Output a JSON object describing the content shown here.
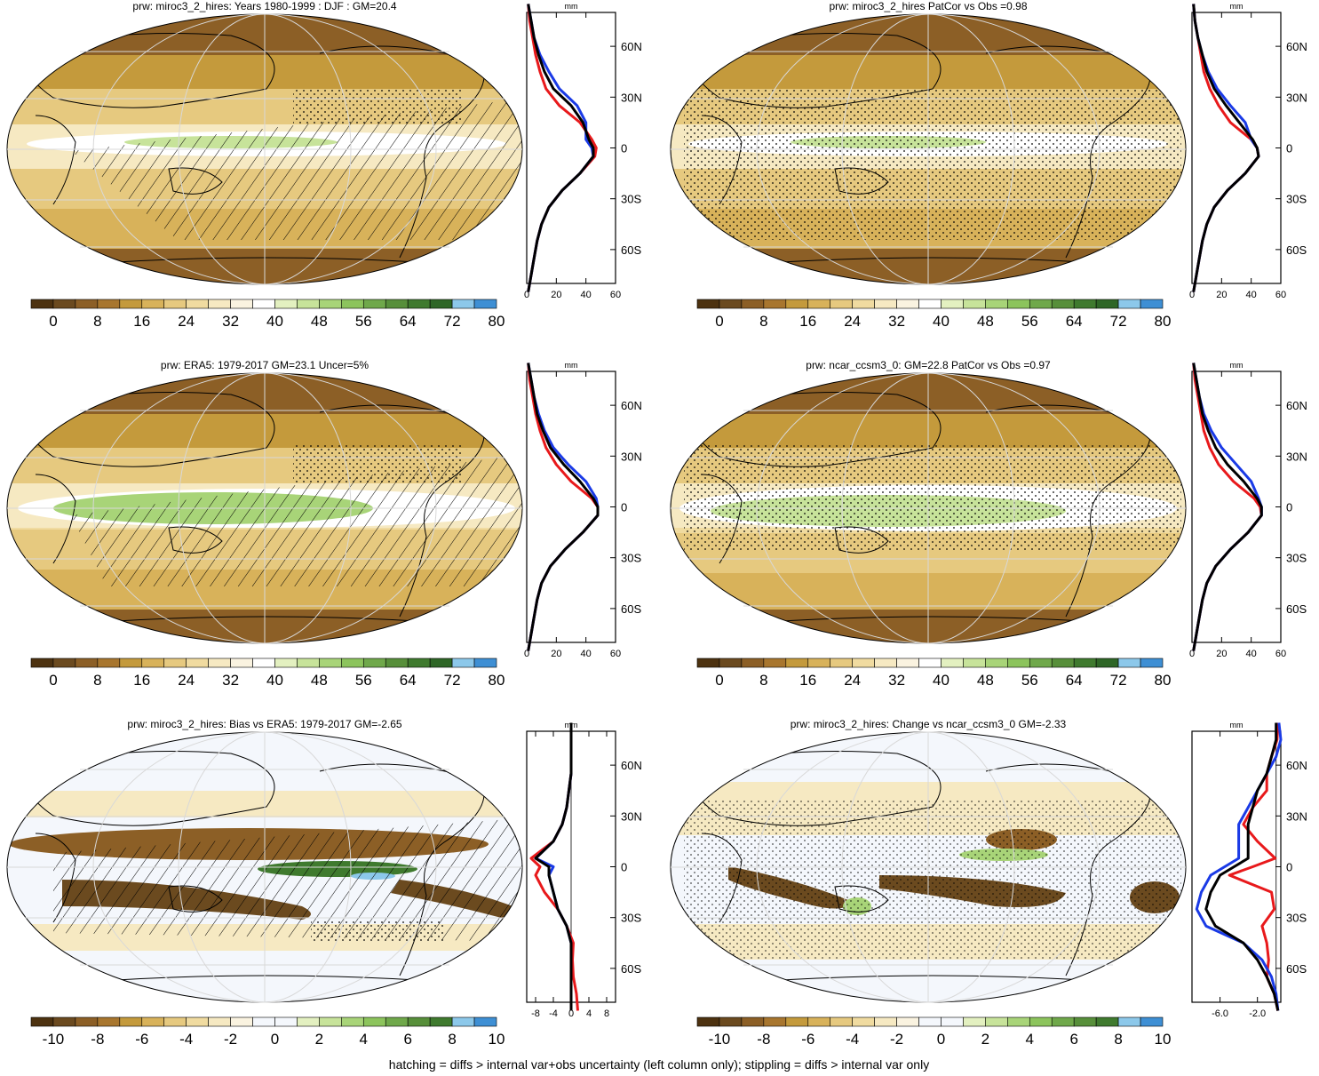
{
  "footer": "hatching = diffs > internal var+obs uncertainty (left column only); stippling = diffs > internal var only",
  "colors": {
    "precip_scale": [
      "#4d3210",
      "#6b4a1f",
      "#8c5f26",
      "#a8762e",
      "#c49a3c",
      "#d8b25a",
      "#e6c97f",
      "#f0dba0",
      "#f6e9c2",
      "#faf3e0",
      "#ffffff",
      "#e3f0c0",
      "#c7e39a",
      "#a8d478",
      "#8cc45c",
      "#6fa84a",
      "#578f3a",
      "#3f7a2e",
      "#2e6626",
      "#8cc8ea",
      "#3e8fd4"
    ],
    "diff_scale": [
      "#4d3210",
      "#6b4a1f",
      "#8c5f26",
      "#a8762e",
      "#c49a3c",
      "#d8b25a",
      "#e6c97f",
      "#f0dba0",
      "#f6e9c2",
      "#faf3e0",
      "#f4f7fc",
      "#f4f7fc",
      "#e3f0c0",
      "#c7e39a",
      "#a8d478",
      "#8cc45c",
      "#6fa84a",
      "#578f3a",
      "#3f7a2e",
      "#8cc8ea",
      "#3e8fd4"
    ],
    "model_line": "#e8191b",
    "obs_line": "#1a3ae6",
    "mean_line": "#000000"
  },
  "chart_data": [
    {
      "type": "map",
      "title": "prw: miroc3_2_hires: Years 1980-1999 : DJF : GM=20.4",
      "colorbar_labels": [
        "0",
        "8",
        "16",
        "24",
        "32",
        "40",
        "48",
        "56",
        "64",
        "72",
        "80"
      ],
      "overlay": "hatching"
    },
    {
      "type": "map",
      "title": "prw: miroc3_2_hires PatCor vs Obs =0.98",
      "colorbar_labels": [
        "0",
        "8",
        "16",
        "24",
        "32",
        "40",
        "48",
        "56",
        "64",
        "72",
        "80"
      ],
      "overlay": "stippling"
    },
    {
      "type": "map",
      "title": "prw: ERA5: 1979-2017 GM=23.1 Uncer=5%",
      "colorbar_labels": [
        "0",
        "8",
        "16",
        "24",
        "32",
        "40",
        "48",
        "56",
        "64",
        "72",
        "80"
      ],
      "overlay": "hatching"
    },
    {
      "type": "map",
      "title": "prw: ncar_ccsm3_0: GM=22.8 PatCor vs Obs =0.97",
      "colorbar_labels": [
        "0",
        "8",
        "16",
        "24",
        "32",
        "40",
        "48",
        "56",
        "64",
        "72",
        "80"
      ],
      "overlay": "stippling"
    },
    {
      "type": "map",
      "title": "prw: miroc3_2_hires: Bias vs ERA5: 1979-2017 GM=-2.65",
      "colorbar_labels": [
        "-10",
        "-8",
        "-6",
        "-4",
        "-2",
        "0",
        "2",
        "4",
        "6",
        "8",
        "10"
      ],
      "overlay": "hatching"
    },
    {
      "type": "map",
      "title": "prw: miroc3_2_hires: Change vs ncar_ccsm3_0 GM=-2.33",
      "colorbar_labels": [
        "-10",
        "-8",
        "-6",
        "-4",
        "-2",
        "0",
        "2",
        "4",
        "6",
        "8",
        "10"
      ],
      "overlay": "stippling"
    },
    {
      "type": "line",
      "panel": "zonal mean, row 1 left",
      "unit": "mm",
      "xlim": [
        0,
        60
      ],
      "ylim": [
        -80,
        80
      ],
      "x_ticks": [
        "0",
        "20",
        "40",
        "60"
      ],
      "y_ticks": [
        "60N",
        "30N",
        "0",
        "30S",
        "60S"
      ],
      "y_tick_values": [
        60,
        30,
        0,
        -30,
        -60
      ],
      "lat": [
        -85,
        -75,
        -65,
        -55,
        -45,
        -35,
        -25,
        -15,
        -5,
        0,
        5,
        15,
        25,
        35,
        45,
        55,
        65,
        75,
        85
      ],
      "series": [
        {
          "color": "red",
          "values": [
            1,
            3,
            5,
            7,
            10,
            15,
            24,
            36,
            46,
            47,
            44,
            36,
            22,
            13,
            9,
            6,
            4,
            2,
            1
          ]
        },
        {
          "color": "blue",
          "values": [
            1,
            3,
            5,
            7,
            10,
            15,
            24,
            36,
            45,
            44,
            40,
            40,
            34,
            22,
            15,
            9,
            5,
            3,
            1
          ]
        },
        {
          "color": "black",
          "values": [
            1,
            3,
            5,
            7,
            10,
            15,
            24,
            36,
            45,
            45,
            42,
            38,
            30,
            18,
            12,
            8,
            5,
            3,
            1
          ]
        }
      ]
    },
    {
      "type": "line",
      "panel": "zonal mean, row 1 right",
      "unit": "mm",
      "xlim": [
        0,
        60
      ],
      "ylim": [
        -80,
        80
      ],
      "x_ticks": [
        "0",
        "20",
        "40",
        "60"
      ],
      "y_ticks": [
        "60N",
        "30N",
        "0",
        "30S",
        "60S"
      ],
      "y_tick_values": [
        60,
        30,
        0,
        -30,
        -60
      ],
      "lat": [
        -85,
        -75,
        -65,
        -55,
        -45,
        -35,
        -25,
        -15,
        -5,
        0,
        5,
        15,
        25,
        35,
        45,
        55,
        65,
        75,
        85
      ],
      "series": [
        {
          "color": "red",
          "values": [
            1,
            3,
            5,
            7,
            10,
            15,
            24,
            36,
            45,
            44,
            40,
            26,
            18,
            12,
            8,
            6,
            4,
            2,
            1
          ]
        },
        {
          "color": "blue",
          "values": [
            1,
            3,
            5,
            7,
            10,
            15,
            24,
            36,
            45,
            44,
            40,
            36,
            26,
            17,
            11,
            7,
            4,
            2,
            1
          ]
        },
        {
          "color": "black",
          "values": [
            1,
            3,
            5,
            7,
            10,
            15,
            24,
            36,
            45,
            44,
            41,
            32,
            23,
            15,
            10,
            7,
            4,
            2,
            1
          ]
        }
      ]
    },
    {
      "type": "line",
      "panel": "zonal mean, row 2 left",
      "unit": "mm",
      "xlim": [
        0,
        60
      ],
      "ylim": [
        -80,
        80
      ],
      "x_ticks": [
        "0",
        "20",
        "40",
        "60"
      ],
      "y_ticks": [
        "60N",
        "30N",
        "0",
        "30S",
        "60S"
      ],
      "y_tick_values": [
        60,
        30,
        0,
        -30,
        -60
      ],
      "lat": [
        -85,
        -75,
        -65,
        -55,
        -45,
        -35,
        -25,
        -15,
        -5,
        0,
        5,
        15,
        25,
        35,
        45,
        55,
        65,
        75,
        85
      ],
      "series": [
        {
          "color": "red",
          "values": [
            1,
            3,
            5,
            7,
            10,
            16,
            26,
            38,
            48,
            48,
            44,
            30,
            20,
            13,
            9,
            6,
            4,
            2,
            1
          ]
        },
        {
          "color": "blue",
          "values": [
            1,
            3,
            5,
            7,
            10,
            16,
            26,
            38,
            48,
            48,
            47,
            40,
            28,
            18,
            12,
            8,
            5,
            3,
            1
          ]
        },
        {
          "color": "black",
          "values": [
            1,
            3,
            5,
            7,
            10,
            16,
            26,
            38,
            48,
            48,
            45,
            36,
            25,
            16,
            11,
            7,
            5,
            3,
            1
          ]
        }
      ]
    },
    {
      "type": "line",
      "panel": "zonal mean, row 2 right",
      "unit": "mm",
      "xlim": [
        0,
        60
      ],
      "ylim": [
        -80,
        80
      ],
      "x_ticks": [
        "0",
        "20",
        "40",
        "60"
      ],
      "y_ticks": [
        "60N",
        "30N",
        "0",
        "30S",
        "60S"
      ],
      "y_tick_values": [
        60,
        30,
        0,
        -30,
        -60
      ],
      "lat": [
        -85,
        -75,
        -65,
        -55,
        -45,
        -35,
        -25,
        -15,
        -5,
        0,
        5,
        15,
        25,
        35,
        45,
        55,
        65,
        75,
        85
      ],
      "series": [
        {
          "color": "red",
          "values": [
            1,
            3,
            5,
            7,
            10,
            16,
            26,
            38,
            47,
            46,
            42,
            28,
            18,
            12,
            8,
            6,
            4,
            2,
            1
          ]
        },
        {
          "color": "blue",
          "values": [
            1,
            3,
            5,
            7,
            10,
            16,
            26,
            38,
            47,
            47,
            45,
            40,
            30,
            20,
            13,
            8,
            5,
            3,
            1
          ]
        },
        {
          "color": "black",
          "values": [
            1,
            3,
            5,
            7,
            10,
            16,
            26,
            38,
            47,
            47,
            44,
            35,
            24,
            16,
            11,
            7,
            5,
            3,
            1
          ]
        }
      ]
    },
    {
      "type": "line",
      "panel": "zonal mean, row 3 left",
      "unit": "mm",
      "xlim": [
        -10,
        10
      ],
      "ylim": [
        -80,
        80
      ],
      "x_ticks": [
        "-8",
        "-4",
        "0",
        "4",
        "8"
      ],
      "x_tick_values": [
        -8,
        -4,
        0,
        4,
        8
      ],
      "y_ticks": [
        "60N",
        "30N",
        "0",
        "30S",
        "60S"
      ],
      "y_tick_values": [
        60,
        30,
        0,
        -30,
        -60
      ],
      "lat": [
        -85,
        -75,
        -65,
        -55,
        -45,
        -35,
        -25,
        -15,
        -5,
        0,
        5,
        15,
        25,
        35,
        45,
        55,
        65,
        75,
        85
      ],
      "series": [
        {
          "color": "red",
          "values": [
            1.5,
            1.2,
            0.5,
            0.3,
            0.5,
            -1,
            -3,
            -6,
            -8,
            -7,
            -9,
            -4,
            -2,
            -1,
            -0.5,
            0,
            0,
            0,
            0
          ]
        },
        {
          "color": "blue",
          "values": [
            0,
            0,
            0,
            0,
            0,
            -1,
            -3,
            -4,
            -5,
            -4,
            -8,
            -4,
            -2,
            -1,
            -0.5,
            0,
            0,
            0,
            0
          ]
        },
        {
          "color": "black",
          "values": [
            0,
            0,
            0,
            0,
            0,
            -1,
            -3,
            -4,
            -5,
            -5,
            -8,
            -4,
            -2,
            -1,
            -0.5,
            0,
            0,
            0,
            0
          ]
        }
      ]
    },
    {
      "type": "line",
      "panel": "zonal mean, row 3 right",
      "unit": "mm",
      "xlim": [
        -9,
        0.5
      ],
      "ylim": [
        -80,
        80
      ],
      "x_ticks": [
        "-6.0",
        "-2.0"
      ],
      "x_tick_values": [
        -6,
        -2
      ],
      "y_ticks": [
        "60N",
        "30N",
        "0",
        "30S",
        "60S"
      ],
      "y_tick_values": [
        60,
        30,
        0,
        -30,
        -60
      ],
      "lat": [
        -85,
        -75,
        -65,
        -55,
        -45,
        -35,
        -25,
        -15,
        -5,
        0,
        5,
        15,
        25,
        35,
        45,
        55,
        65,
        75,
        85
      ],
      "series": [
        {
          "color": "red",
          "values": [
            0.2,
            -0.2,
            -1,
            -0.8,
            -1,
            -1.5,
            -0.2,
            -0.5,
            -5,
            -2.5,
            -0.1,
            -2,
            -3.5,
            -2.5,
            -1,
            -1,
            -0.5,
            0.1,
            0.2
          ]
        },
        {
          "color": "blue",
          "values": [
            0.2,
            0,
            -0.5,
            -1.5,
            -3.5,
            -7.5,
            -8.5,
            -8,
            -7,
            -5.5,
            -4,
            -4,
            -4,
            -3,
            -2,
            -1,
            0,
            0.5,
            0.3
          ]
        },
        {
          "color": "black",
          "values": [
            0.2,
            -0.2,
            -1,
            -2,
            -3.5,
            -6.5,
            -7.5,
            -7,
            -6,
            -4.5,
            -3,
            -3,
            -3,
            -2.5,
            -2,
            -1,
            -0.5,
            0,
            0
          ]
        }
      ]
    }
  ]
}
